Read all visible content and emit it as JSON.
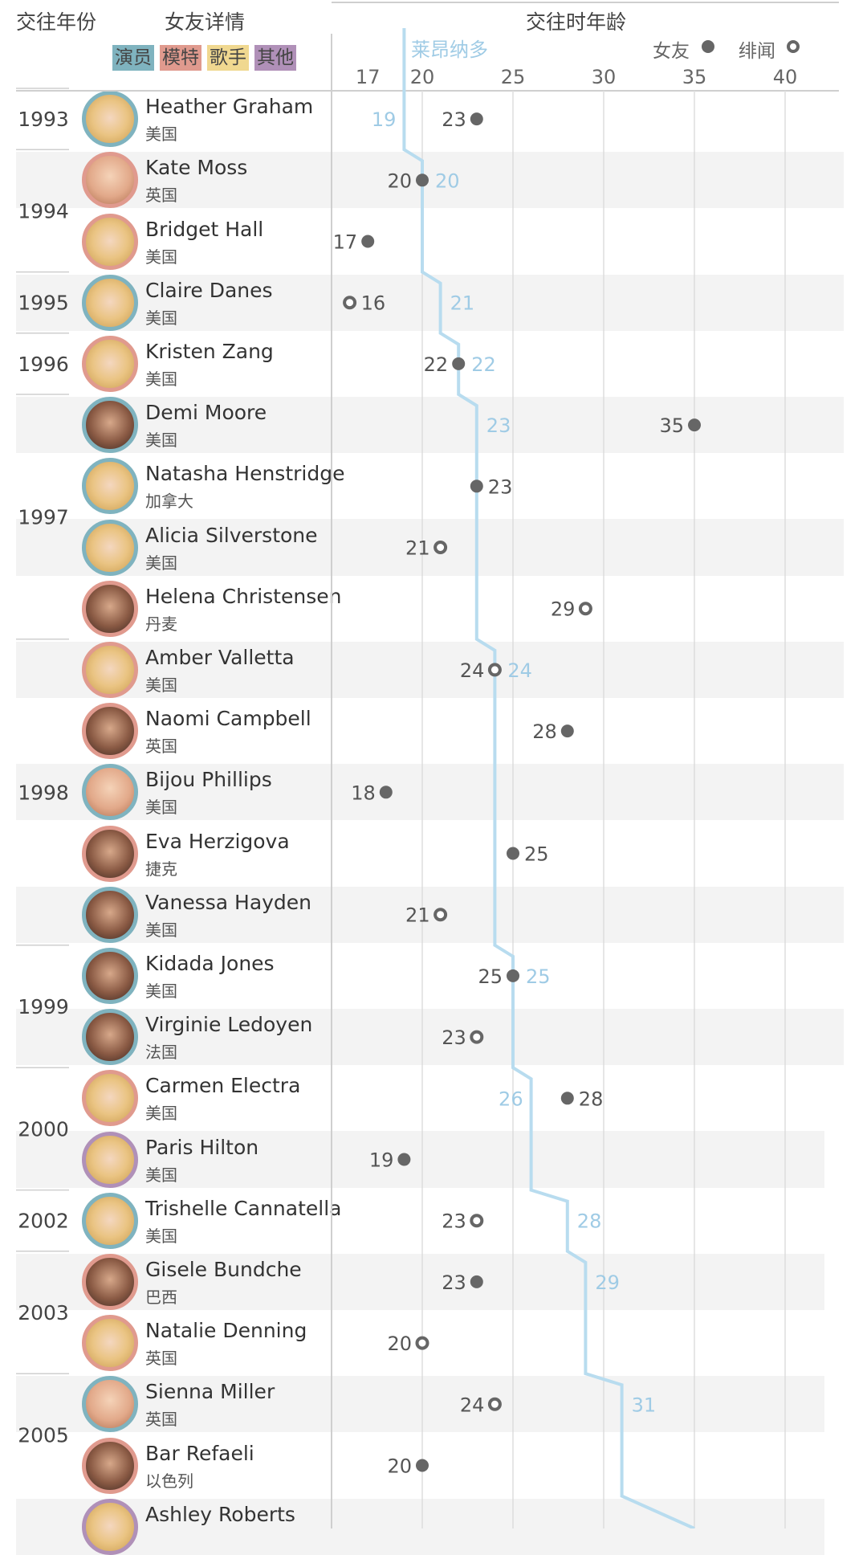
{
  "header": {
    "col_year": "交往年份",
    "col_detail": "女友详情",
    "col_age": "交往时年龄",
    "categories": [
      {
        "label": "演员",
        "color": "#7fb3bf"
      },
      {
        "label": "模特",
        "color": "#e09a8e"
      },
      {
        "label": "歌手",
        "color": "#f0d890"
      },
      {
        "label": "其他",
        "color": "#b090b8"
      }
    ],
    "leo_label": "莱昂纳多",
    "legend_girlfriend": "女友",
    "legend_rumor": "绯闻"
  },
  "chart_data": {
    "type": "scatter",
    "xlabel": "交往时年龄",
    "xlim": [
      16,
      42
    ],
    "ticks": [
      17,
      20,
      25,
      30,
      35,
      40
    ],
    "colors": {
      "leo": "#b8dcef",
      "leo_text": "#9fcbe5",
      "dot": "#666666",
      "grid": "#dddddd"
    },
    "series": [
      {
        "name": "莱昂纳多",
        "age_labels": [
          {
            "row": 0,
            "age": 19
          },
          {
            "row": 1,
            "age": 20
          },
          {
            "row": 3,
            "age": 21
          },
          {
            "row": 4,
            "age": 22
          },
          {
            "row": 5,
            "age": 23
          },
          {
            "row": 9,
            "age": 24
          },
          {
            "row": 14,
            "age": 25
          },
          {
            "row": 16,
            "age": 26
          },
          {
            "row": 18,
            "age": 28
          },
          {
            "row": 19,
            "age": 29
          },
          {
            "row": 21,
            "age": 31
          }
        ]
      },
      {
        "name": "女友"
      },
      {
        "name": "绯闻"
      }
    ],
    "rows": [
      {
        "name": "Heather Graham",
        "country": "美国",
        "category": "actor",
        "age": 23,
        "kind": "girlfriend",
        "label_side": "left"
      },
      {
        "name": "Kate Moss",
        "country": "英国",
        "category": "model",
        "age": 20,
        "kind": "girlfriend",
        "label_side": "left"
      },
      {
        "name": "Bridget Hall",
        "country": "美国",
        "category": "model",
        "age": 17,
        "kind": "girlfriend",
        "label_side": "left"
      },
      {
        "name": "Claire Danes",
        "country": "美国",
        "category": "actor",
        "age": 16,
        "kind": "rumor",
        "label_side": "right"
      },
      {
        "name": "Kristen Zang",
        "country": "美国",
        "category": "model",
        "age": 22,
        "kind": "girlfriend",
        "label_side": "left"
      },
      {
        "name": "Demi Moore",
        "country": "美国",
        "category": "actor",
        "age": 35,
        "kind": "girlfriend",
        "label_side": "left"
      },
      {
        "name": "Natasha Henstridge",
        "country": "加拿大",
        "category": "actor",
        "age": 23,
        "kind": "girlfriend",
        "label_side": "right"
      },
      {
        "name": "Alicia Silverstone",
        "country": "美国",
        "category": "actor",
        "age": 21,
        "kind": "rumor",
        "label_side": "left"
      },
      {
        "name": "Helena Christensen",
        "country": "丹麦",
        "category": "model",
        "age": 29,
        "kind": "rumor",
        "label_side": "left"
      },
      {
        "name": "Amber Valletta",
        "country": "美国",
        "category": "model",
        "age": 24,
        "kind": "rumor",
        "label_side": "left"
      },
      {
        "name": "Naomi Campbell",
        "country": "英国",
        "category": "model",
        "age": 28,
        "kind": "girlfriend",
        "label_side": "left"
      },
      {
        "name": "Bijou Phillips",
        "country": "美国",
        "category": "actor",
        "age": 18,
        "kind": "girlfriend",
        "label_side": "left"
      },
      {
        "name": "Eva Herzigova",
        "country": "捷克",
        "category": "model",
        "age": 25,
        "kind": "girlfriend",
        "label_side": "right"
      },
      {
        "name": "Vanessa Hayden",
        "country": "美国",
        "category": "actor",
        "age": 21,
        "kind": "rumor",
        "label_side": "left"
      },
      {
        "name": "Kidada Jones",
        "country": "美国",
        "category": "actor",
        "age": 25,
        "kind": "girlfriend",
        "label_side": "left"
      },
      {
        "name": "Virginie Ledoyen",
        "country": "法国",
        "category": "actor",
        "age": 23,
        "kind": "rumor",
        "label_side": "left"
      },
      {
        "name": "Carmen Electra",
        "country": "美国",
        "category": "model",
        "age": 28,
        "kind": "girlfriend",
        "label_side": "right"
      },
      {
        "name": "Paris Hilton",
        "country": "美国",
        "category": "other",
        "age": 19,
        "kind": "girlfriend",
        "label_side": "left"
      },
      {
        "name": "Trishelle Cannatella",
        "country": "美国",
        "category": "actor",
        "age": 23,
        "kind": "rumor",
        "label_side": "left"
      },
      {
        "name": "Gisele Bundche",
        "country": "巴西",
        "category": "model",
        "age": 23,
        "kind": "girlfriend",
        "label_side": "left"
      },
      {
        "name": "Natalie Denning",
        "country": "英国",
        "category": "model",
        "age": 20,
        "kind": "rumor",
        "label_side": "left"
      },
      {
        "name": "Sienna Miller",
        "country": "英国",
        "category": "actor",
        "age": 24,
        "kind": "rumor",
        "label_side": "left"
      },
      {
        "name": "Bar Refaeli",
        "country": "以色列",
        "category": "model",
        "age": 20,
        "kind": "girlfriend",
        "label_side": "left"
      },
      {
        "name": "Ashley Roberts",
        "country": "",
        "category": "other",
        "age": null,
        "kind": "",
        "label_side": "left"
      }
    ],
    "years": [
      {
        "label": "1993",
        "first_row": 0,
        "last_row": 0
      },
      {
        "label": "1994",
        "first_row": 1,
        "last_row": 2
      },
      {
        "label": "1995",
        "first_row": 3,
        "last_row": 3
      },
      {
        "label": "1996",
        "first_row": 4,
        "last_row": 4
      },
      {
        "label": "1997",
        "first_row": 5,
        "last_row": 8
      },
      {
        "label": "1998",
        "first_row": 9,
        "last_row": 13
      },
      {
        "label": "1999",
        "first_row": 14,
        "last_row": 15
      },
      {
        "label": "2000",
        "first_row": 16,
        "last_row": 17
      },
      {
        "label": "2002",
        "first_row": 18,
        "last_row": 18
      },
      {
        "label": "2003",
        "first_row": 19,
        "last_row": 20
      },
      {
        "label": "2005",
        "first_row": 21,
        "last_row": 22
      }
    ]
  }
}
